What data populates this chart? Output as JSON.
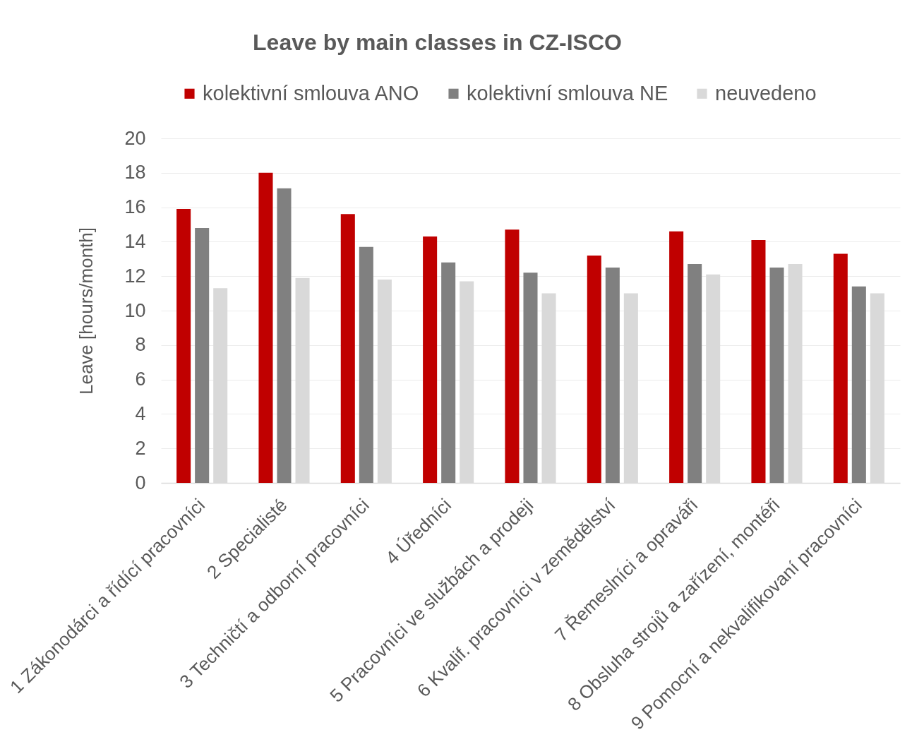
{
  "chart_data": {
    "type": "bar",
    "title": "Leave by main classes in CZ-ISCO",
    "ylabel": "Leave [hours/month]",
    "categories": [
      "1 Zákonodárci a řídící pracovníci",
      "2 Specialisté",
      "3 Techničtí a odborní pracovníci",
      "4 Úředníci",
      "5 Pracovníci ve službách a prodeji",
      "6 Kvalif. pracovníci v zemědělství",
      "7 Řemeslníci a opraváři",
      "8 Obsluha strojů a zařízení, montéři",
      "9 Pomocní a nekvalifikovaní pracovníci"
    ],
    "series": [
      {
        "name": "kolektivní smlouva ANO",
        "color": "#c00000",
        "values": [
          15.9,
          18.0,
          15.6,
          14.3,
          14.7,
          13.2,
          14.6,
          14.1,
          13.3
        ]
      },
      {
        "name": "kolektivní smlouva NE",
        "color": "#808080",
        "values": [
          14.8,
          17.1,
          13.7,
          12.8,
          12.2,
          12.5,
          12.7,
          12.5,
          11.4
        ]
      },
      {
        "name": "neuvedeno",
        "color": "#d9d9d9",
        "values": [
          11.3,
          11.9,
          11.8,
          11.7,
          11.0,
          11.0,
          12.1,
          12.7,
          11.0
        ]
      }
    ],
    "ylim": [
      0,
      20
    ],
    "yticks": [
      0,
      2,
      4,
      6,
      8,
      10,
      12,
      14,
      16,
      18,
      20
    ],
    "grid": "y",
    "legend": "top"
  }
}
